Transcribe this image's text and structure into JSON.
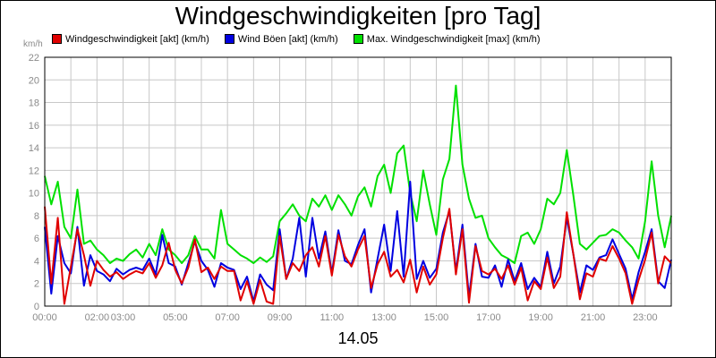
{
  "chart_data": {
    "type": "line",
    "title": "Windgeschwindigkeiten [pro Tag]",
    "ylabel": "km/h",
    "xlabel": "14.05",
    "ylim": [
      0,
      22
    ],
    "yticks": [
      "0",
      "2",
      "4",
      "6",
      "8",
      "10",
      "12",
      "14",
      "16",
      "18",
      "20",
      "22"
    ],
    "xtick_labels": [
      "00:00",
      "02:00",
      "03:00",
      "05:00",
      "07:00",
      "09:00",
      "11:00",
      "13:00",
      "15:00",
      "17:00",
      "19:00",
      "21:00",
      "23:00"
    ],
    "xtick_hours": [
      0,
      2,
      3,
      5,
      7,
      9,
      11,
      13,
      15,
      17,
      19,
      21,
      23
    ],
    "xlim_hours": [
      0,
      24
    ],
    "grid": true,
    "legend_placement": "top",
    "series": [
      {
        "name": "Windgeschwindigkeit [akt] (km/h)",
        "color": "#e00000",
        "x": [
          0,
          0.25,
          0.5,
          0.75,
          1,
          1.25,
          1.5,
          1.75,
          2,
          2.25,
          2.5,
          2.75,
          3,
          3.25,
          3.5,
          3.75,
          4,
          4.25,
          4.5,
          4.75,
          5,
          5.25,
          5.5,
          5.75,
          6,
          6.25,
          6.5,
          6.75,
          7,
          7.25,
          7.5,
          7.75,
          8,
          8.25,
          8.5,
          8.75,
          9,
          9.25,
          9.5,
          9.75,
          10,
          10.25,
          10.5,
          10.75,
          11,
          11.25,
          11.5,
          11.75,
          12,
          12.25,
          12.5,
          12.75,
          13,
          13.25,
          13.5,
          13.75,
          14,
          14.25,
          14.5,
          14.75,
          15,
          15.25,
          15.5,
          15.75,
          16,
          16.25,
          16.5,
          16.75,
          17,
          17.25,
          17.5,
          17.75,
          18,
          18.25,
          18.5,
          18.75,
          19,
          19.25,
          19.5,
          19.75,
          20,
          20.25,
          20.5,
          20.75,
          21,
          21.25,
          21.5,
          21.75,
          22,
          22.25,
          22.5,
          22.75,
          23,
          23.25,
          23.5,
          23.75,
          24
        ],
        "values": [
          8.8,
          2,
          7.8,
          0.2,
          3.5,
          6.8,
          4.5,
          1.8,
          4,
          3.2,
          2.6,
          3,
          2.4,
          2.8,
          3.1,
          2.9,
          3.8,
          2.5,
          3.6,
          5.6,
          3.2,
          2,
          3.4,
          5.9,
          3,
          3.4,
          2.4,
          3.5,
          3.1,
          3.1,
          0.5,
          2.2,
          0.2,
          2.3,
          0.4,
          0.2,
          6.2,
          2.4,
          3.8,
          3.1,
          4.5,
          5.2,
          3.5,
          6.2,
          2.7,
          6.3,
          4.4,
          3.5,
          5,
          6.2,
          1.6,
          3.7,
          4.8,
          2.6,
          3.2,
          2.1,
          4.1,
          1.2,
          3.5,
          1.9,
          2.8,
          6,
          8.6,
          2.8,
          6.8,
          0.3,
          5.3,
          3.1,
          2.8,
          3.3,
          2.4,
          3.6,
          1.9,
          3.4,
          0.5,
          2.2,
          1.5,
          4.3,
          1.6,
          2.6,
          8.3,
          4.6,
          0.6,
          2.9,
          2.6,
          4.2,
          4,
          5.3,
          4.2,
          2.9,
          0.2,
          2.3,
          4.1,
          6.5,
          2,
          4.4,
          3.8
        ]
      },
      {
        "name": "Wind Böen [akt] (km/h)",
        "color": "#0000e0",
        "x": [
          0,
          0.25,
          0.5,
          0.75,
          1,
          1.25,
          1.5,
          1.75,
          2,
          2.25,
          2.5,
          2.75,
          3,
          3.25,
          3.5,
          3.75,
          4,
          4.25,
          4.5,
          4.75,
          5,
          5.25,
          5.5,
          5.75,
          6,
          6.25,
          6.5,
          6.75,
          7,
          7.25,
          7.5,
          7.75,
          8,
          8.25,
          8.5,
          8.75,
          9,
          9.25,
          9.5,
          9.75,
          10,
          10.25,
          10.5,
          10.75,
          11,
          11.25,
          11.5,
          11.75,
          12,
          12.25,
          12.5,
          12.75,
          13,
          13.25,
          13.5,
          13.75,
          14,
          14.25,
          14.5,
          14.75,
          15,
          15.25,
          15.5,
          15.75,
          16,
          16.25,
          16.5,
          16.75,
          17,
          17.25,
          17.5,
          17.75,
          18,
          18.25,
          18.5,
          18.75,
          19,
          19.25,
          19.5,
          19.75,
          20,
          20.25,
          20.5,
          20.75,
          21,
          21.25,
          21.5,
          21.75,
          22,
          22.25,
          22.5,
          22.75,
          23,
          23.25,
          23.5,
          23.75,
          24
        ],
        "values": [
          7,
          1.1,
          6.2,
          3.8,
          2.9,
          7,
          1.8,
          4.5,
          3.1,
          2.8,
          2.2,
          3.3,
          2.8,
          3.2,
          3.4,
          3.2,
          4.2,
          2.8,
          6.3,
          3.8,
          3.5,
          1.9,
          3.8,
          5.7,
          4,
          3.2,
          1.7,
          3.8,
          3.4,
          3.2,
          1.5,
          2.6,
          0.4,
          2.8,
          1.9,
          1.4,
          6.8,
          2.4,
          4.2,
          7.8,
          2.6,
          7.8,
          4.2,
          6.6,
          2.9,
          6.7,
          4,
          3.7,
          5.4,
          6.8,
          1.2,
          4.2,
          7.2,
          3.1,
          8.4,
          2.6,
          11,
          2.4,
          4,
          2.5,
          3.3,
          6.5,
          8.4,
          3.1,
          7.2,
          0.8,
          5.5,
          2.6,
          2.5,
          3.6,
          1.7,
          4.1,
          2.2,
          3.8,
          1.5,
          2.5,
          1.7,
          4.8,
          2,
          3.5,
          7.8,
          4.6,
          1.2,
          3.6,
          3.2,
          4.3,
          4.5,
          5.9,
          4.6,
          3.3,
          0.6,
          3,
          4.8,
          6.8,
          2.2,
          1.6,
          4.1
        ]
      },
      {
        "name": "Max. Windgeschwindigkeit [max] (km/h)",
        "color": "#00e000",
        "x": [
          0,
          0.25,
          0.5,
          0.75,
          1,
          1.25,
          1.5,
          1.75,
          2,
          2.25,
          2.5,
          2.75,
          3,
          3.25,
          3.5,
          3.75,
          4,
          4.25,
          4.5,
          4.75,
          5,
          5.25,
          5.5,
          5.75,
          6,
          6.25,
          6.5,
          6.75,
          7,
          7.25,
          7.5,
          7.75,
          8,
          8.25,
          8.5,
          8.75,
          9,
          9.25,
          9.5,
          9.75,
          10,
          10.25,
          10.5,
          10.75,
          11,
          11.25,
          11.5,
          11.75,
          12,
          12.25,
          12.5,
          12.75,
          13,
          13.25,
          13.5,
          13.75,
          14,
          14.25,
          14.5,
          14.75,
          15,
          15.25,
          15.5,
          15.75,
          16,
          16.25,
          16.5,
          16.75,
          17,
          17.25,
          17.5,
          17.75,
          18,
          18.25,
          18.5,
          18.75,
          19,
          19.25,
          19.5,
          19.75,
          20,
          20.25,
          20.5,
          20.75,
          21,
          21.25,
          21.5,
          21.75,
          22,
          22.25,
          22.5,
          22.75,
          23,
          23.25,
          23.5,
          23.75,
          24
        ],
        "values": [
          11.5,
          9,
          11,
          7,
          6,
          10.3,
          5.5,
          5.8,
          5,
          4.5,
          3.8,
          4.2,
          4,
          4.6,
          5,
          4.3,
          5.5,
          4.5,
          6.8,
          5,
          4.5,
          3.8,
          4.5,
          6.2,
          5,
          5,
          4.2,
          8.5,
          5.5,
          5,
          4.5,
          4.2,
          3.8,
          4.3,
          3.9,
          4.4,
          7.5,
          8.2,
          9,
          8,
          7.5,
          9.5,
          8.8,
          9.8,
          8.5,
          9.8,
          9,
          8,
          9.7,
          10.5,
          8.8,
          11.5,
          12.5,
          10,
          13.5,
          14.2,
          10,
          7.5,
          12,
          9,
          6.3,
          11.2,
          13,
          19.5,
          12.5,
          9.5,
          7.8,
          8,
          6,
          5.2,
          4.5,
          4.2,
          3.8,
          6.2,
          6.5,
          5.5,
          6.8,
          9.5,
          9,
          10,
          13.8,
          9.8,
          5.5,
          5,
          5.6,
          6.2,
          6.3,
          6.8,
          6.5,
          5.8,
          5.2,
          4.2,
          7.5,
          12.8,
          8,
          5.2,
          8
        ]
      }
    ]
  }
}
